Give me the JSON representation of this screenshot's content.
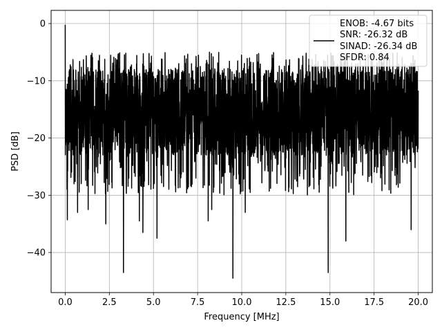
{
  "chart_data": {
    "type": "line",
    "xlabel": "Frequency [MHz]",
    "ylabel": "PSD [dB]",
    "xlim": [
      -0.8,
      20.8
    ],
    "ylim": [
      -47,
      2.3
    ],
    "x_ticks": [
      0.0,
      2.5,
      5.0,
      7.5,
      10.0,
      12.5,
      15.0,
      17.5,
      20.0
    ],
    "x_tick_labels": [
      "0.0",
      "2.5",
      "5.0",
      "7.5",
      "10.0",
      "12.5",
      "15.0",
      "17.5",
      "20.0"
    ],
    "y_ticks": [
      0,
      -10,
      -20,
      -30,
      -40
    ],
    "y_tick_labels": [
      "0",
      "−10",
      "−20",
      "−30",
      "−40"
    ],
    "grid": true,
    "legend_position": "top-right",
    "legend_lines": [
      "ENOB: -4.67 bits",
      "SNR: -26.32 dB",
      "SINAD: -26.34 dB",
      "SFDR: 0.84"
    ],
    "series": [
      {
        "color": "#000000",
        "x_range": [
          0,
          20
        ],
        "envelope_top": -5,
        "envelope_bottom": -25,
        "notable_points": [
          {
            "x": 0.0,
            "y": -0.2
          },
          {
            "x": 0.05,
            "y": -12.5
          },
          {
            "x": 0.12,
            "y": -34.3
          },
          {
            "x": 0.5,
            "y": -28
          },
          {
            "x": 0.7,
            "y": -33
          },
          {
            "x": 1.3,
            "y": -32.5
          },
          {
            "x": 2.3,
            "y": -35
          },
          {
            "x": 3.3,
            "y": -43.5
          },
          {
            "x": 4.2,
            "y": -34.5
          },
          {
            "x": 4.4,
            "y": -36.5
          },
          {
            "x": 5.2,
            "y": -37.5
          },
          {
            "x": 8.1,
            "y": -34.5
          },
          {
            "x": 8.3,
            "y": -32.5
          },
          {
            "x": 9.5,
            "y": -44.5
          },
          {
            "x": 10.2,
            "y": -33
          },
          {
            "x": 15.9,
            "y": -38
          },
          {
            "x": 14.9,
            "y": -43.5
          },
          {
            "x": 19.6,
            "y": -36
          }
        ]
      }
    ]
  }
}
